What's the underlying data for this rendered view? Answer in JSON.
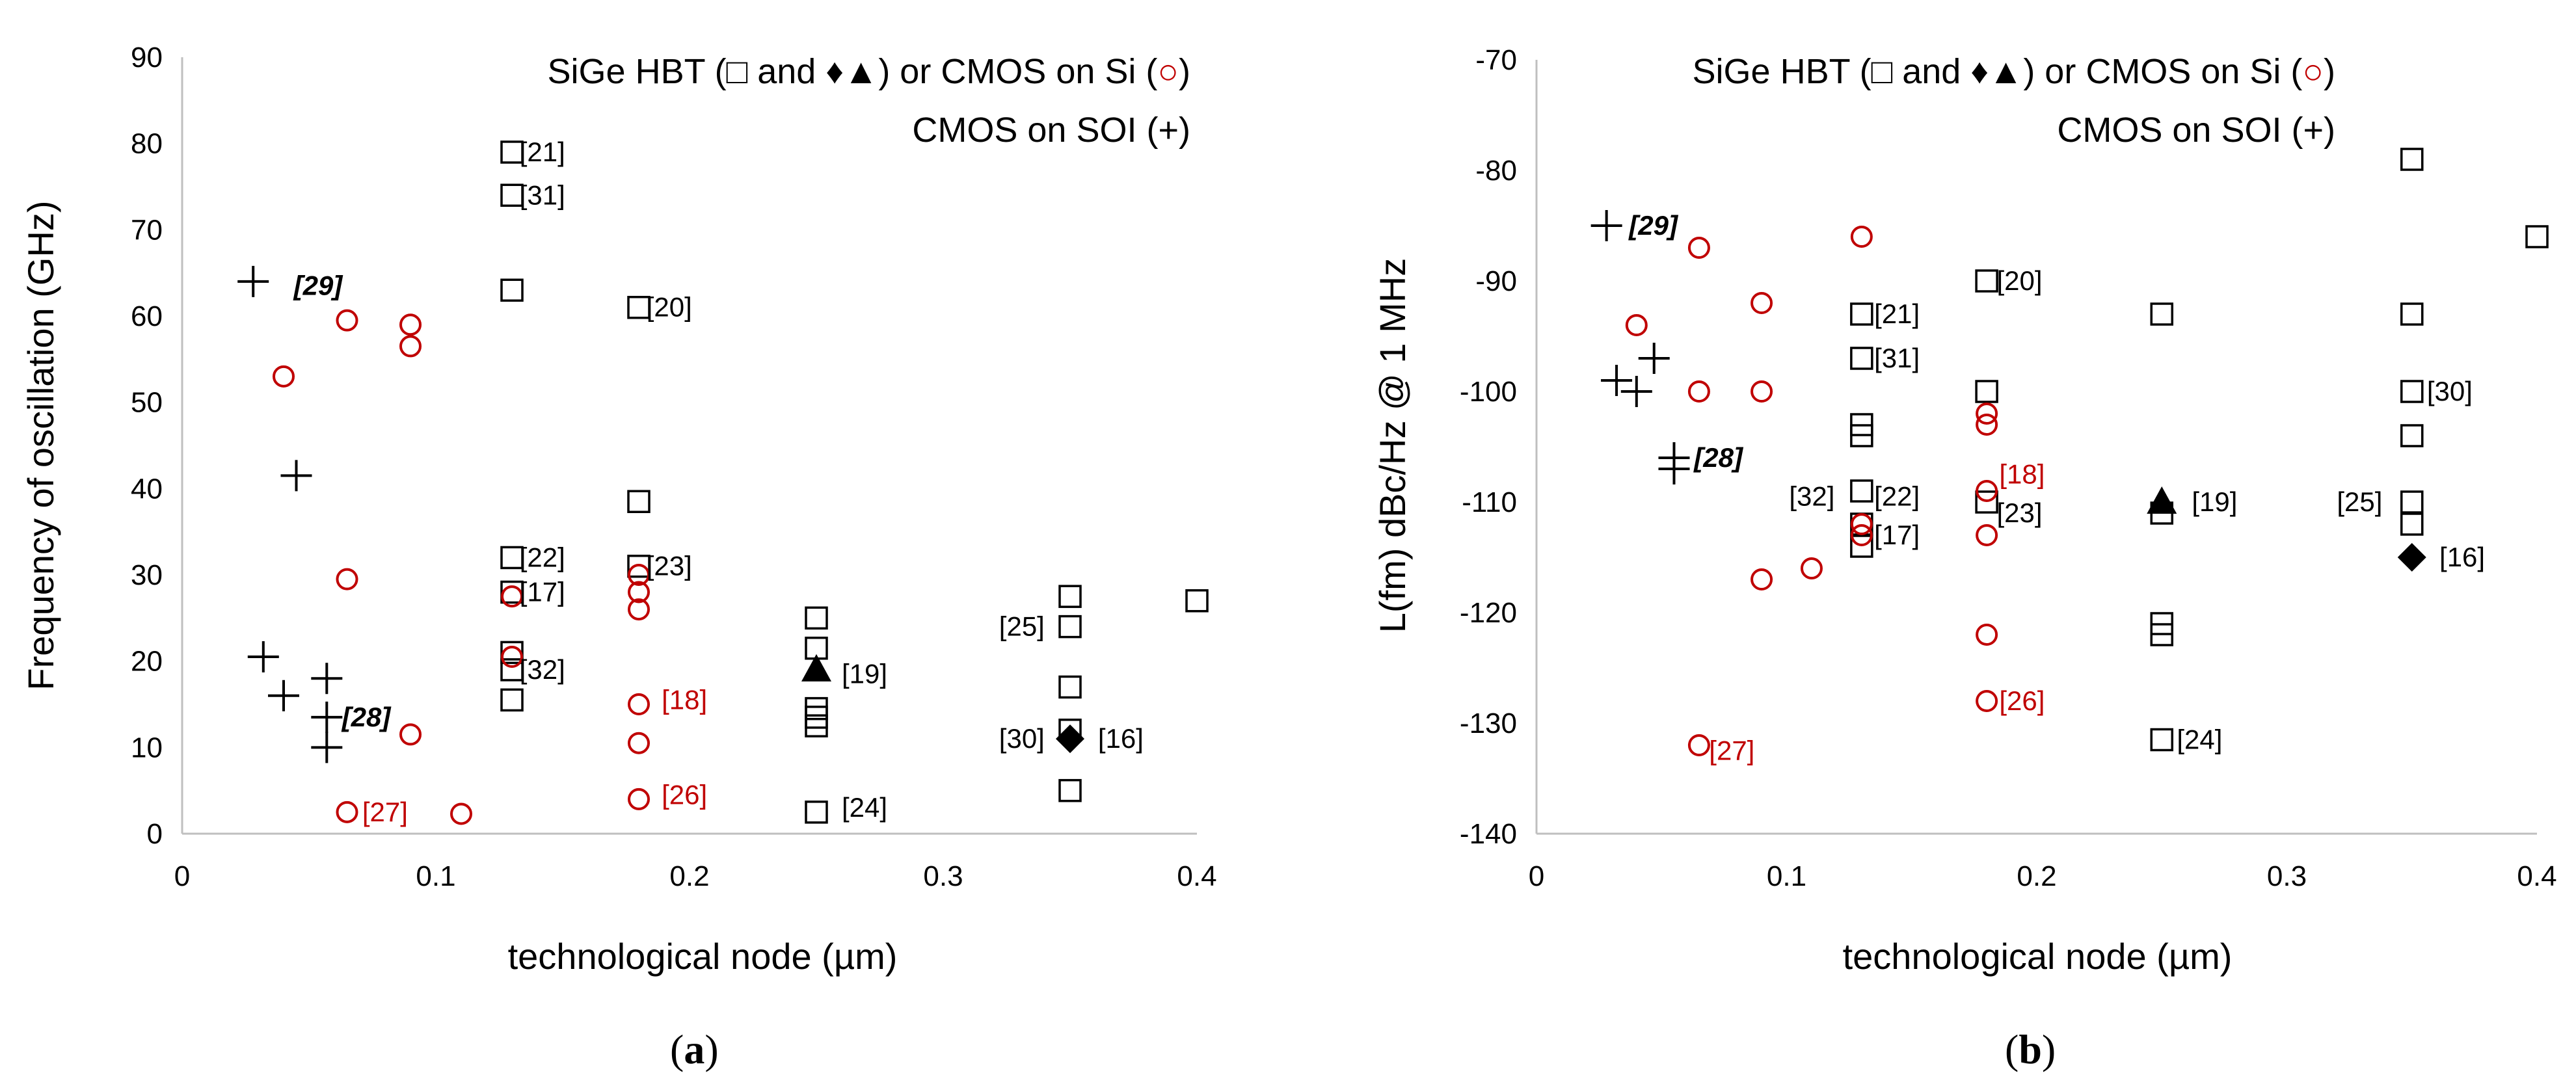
{
  "chart_data": [
    {
      "type": "scatter",
      "panel_label": [
        "(",
        "a",
        ")"
      ],
      "xlabel": "technological node (µm)",
      "ylabel": "Frequency of oscillation (GHz)",
      "xlim": [
        0,
        0.4
      ],
      "ylim": [
        0,
        90
      ],
      "xticks": [
        0,
        0.1,
        0.2,
        0.3,
        0.4
      ],
      "xtick_labels": [
        "0",
        "0.1",
        "0.2",
        "0.3",
        "0.4"
      ],
      "yticks": [
        0,
        10,
        20,
        30,
        40,
        50,
        60,
        70,
        80,
        90
      ],
      "ytick_labels": [
        "0",
        "10",
        "20",
        "30",
        "40",
        "50",
        "60",
        "70",
        "80",
        "90"
      ],
      "legend_line1": [
        "SiGe HBT (",
        "□",
        " and ",
        "♦▲",
        ") or CMOS on Si (",
        "○",
        ")"
      ],
      "legend_line2": "CMOS on SOI (+)",
      "series": [
        {
          "name": "SiGe HBT",
          "marker": "square",
          "color": "#000000",
          "points": [
            [
              0.13,
              79
            ],
            [
              0.13,
              74
            ],
            [
              0.13,
              63
            ],
            [
              0.18,
              61
            ],
            [
              0.18,
              38.5
            ],
            [
              0.13,
              32
            ],
            [
              0.13,
              28
            ],
            [
              0.18,
              31
            ],
            [
              0.13,
              21
            ],
            [
              0.13,
              19
            ],
            [
              0.13,
              15.5
            ],
            [
              0.25,
              25
            ],
            [
              0.25,
              21.5
            ],
            [
              0.25,
              14.5
            ],
            [
              0.25,
              13.5
            ],
            [
              0.25,
              12.5
            ],
            [
              0.25,
              2.5
            ],
            [
              0.35,
              27.5
            ],
            [
              0.35,
              24
            ],
            [
              0.35,
              17
            ],
            [
              0.35,
              12
            ],
            [
              0.35,
              5
            ],
            [
              0.4,
              27
            ]
          ]
        },
        {
          "name": "SiGe HBT triangle",
          "marker": "triangle",
          "color": "#000000",
          "points": [
            [
              0.25,
              19
            ]
          ]
        },
        {
          "name": "SiGe HBT diamond",
          "marker": "diamond",
          "color": "#000000",
          "points": [
            [
              0.35,
              11
            ]
          ]
        },
        {
          "name": "CMOS on Si",
          "marker": "circle",
          "color": "#c00000",
          "points": [
            [
              0.04,
              53
            ],
            [
              0.065,
              59.5
            ],
            [
              0.09,
              59
            ],
            [
              0.09,
              56.5
            ],
            [
              0.065,
              29.5
            ],
            [
              0.09,
              11.5
            ],
            [
              0.065,
              2.5
            ],
            [
              0.11,
              2.3
            ],
            [
              0.13,
              27.5
            ],
            [
              0.13,
              20.5
            ],
            [
              0.18,
              30
            ],
            [
              0.18,
              28
            ],
            [
              0.18,
              26
            ],
            [
              0.18,
              15
            ],
            [
              0.18,
              10.5
            ],
            [
              0.18,
              4
            ]
          ]
        },
        {
          "name": "CMOS on SOI",
          "marker": "plus",
          "color": "#000000",
          "points": [
            [
              0.028,
              64
            ],
            [
              0.045,
              41.5
            ],
            [
              0.032,
              20.5
            ],
            [
              0.04,
              16
            ],
            [
              0.057,
              18
            ],
            [
              0.057,
              13.5
            ],
            [
              0.057,
              10
            ]
          ]
        }
      ],
      "annotations": [
        {
          "text": "[21]",
          "x": 0.133,
          "y": 79,
          "color": "#000000",
          "style": "normal"
        },
        {
          "text": "[31]",
          "x": 0.133,
          "y": 74,
          "color": "#000000",
          "style": "normal"
        },
        {
          "text": "[20]",
          "x": 0.183,
          "y": 61,
          "color": "#000000",
          "style": "normal"
        },
        {
          "text": "[29]",
          "x": 0.044,
          "y": 63.5,
          "color": "#000000",
          "style": "bolditalic"
        },
        {
          "text": "[22]",
          "x": 0.133,
          "y": 32,
          "color": "#000000",
          "style": "normal"
        },
        {
          "text": "[17]",
          "x": 0.133,
          "y": 28,
          "color": "#000000",
          "style": "normal"
        },
        {
          "text": "[23]",
          "x": 0.183,
          "y": 31,
          "color": "#000000",
          "style": "normal"
        },
        {
          "text": "[32]",
          "x": 0.133,
          "y": 19,
          "color": "#000000",
          "style": "normal"
        },
        {
          "text": "[28]",
          "x": 0.063,
          "y": 13.5,
          "color": "#000000",
          "style": "bolditalic"
        },
        {
          "text": "[19]",
          "x": 0.26,
          "y": 18.5,
          "color": "#000000",
          "style": "normal"
        },
        {
          "text": "[25]",
          "x": 0.322,
          "y": 24,
          "color": "#000000",
          "style": "normal"
        },
        {
          "text": "[30]",
          "x": 0.322,
          "y": 11,
          "color": "#000000",
          "style": "normal"
        },
        {
          "text": "[16]",
          "x": 0.361,
          "y": 11,
          "color": "#000000",
          "style": "normal"
        },
        {
          "text": "[24]",
          "x": 0.26,
          "y": 3,
          "color": "#000000",
          "style": "normal"
        },
        {
          "text": "[18]",
          "x": 0.189,
          "y": 15.5,
          "color": "#c00000",
          "style": "normal"
        },
        {
          "text": "[26]",
          "x": 0.189,
          "y": 4.5,
          "color": "#c00000",
          "style": "normal"
        },
        {
          "text": "[27]",
          "x": 0.071,
          "y": 2.5,
          "color": "#c00000",
          "style": "normal"
        }
      ]
    },
    {
      "type": "scatter",
      "panel_label": [
        "(",
        "b",
        ")"
      ],
      "xlabel": "technological node (µm)",
      "ylabel": "L(fm) dBc/Hz @ 1 MHz",
      "xlim": [
        0,
        0.4
      ],
      "ylim": [
        -140,
        -70
      ],
      "xticks": [
        0,
        0.1,
        0.2,
        0.3,
        0.4
      ],
      "xtick_labels": [
        "0",
        "0.1",
        "0.2",
        "0.3",
        "0.4"
      ],
      "yticks": [
        -140,
        -130,
        -120,
        -110,
        -100,
        -90,
        -80,
        -70
      ],
      "ytick_labels": [
        "-140",
        "-130",
        "-120",
        "-110",
        "-100",
        "-90",
        "-80",
        "-70"
      ],
      "legend_line1": [
        "SiGe HBT (",
        "□",
        " and ",
        "♦▲",
        ") or CMOS on Si (",
        "○",
        ")"
      ],
      "legend_line2": "CMOS on SOI (+)",
      "series": [
        {
          "name": "SiGe HBT",
          "marker": "square",
          "color": "#000000",
          "points": [
            [
              0.35,
              -79
            ],
            [
              0.4,
              -86
            ],
            [
              0.18,
              -90
            ],
            [
              0.13,
              -93
            ],
            [
              0.25,
              -93
            ],
            [
              0.35,
              -93
            ],
            [
              0.13,
              -97
            ],
            [
              0.18,
              -100
            ],
            [
              0.35,
              -100
            ],
            [
              0.13,
              -103
            ],
            [
              0.13,
              -104
            ],
            [
              0.35,
              -104
            ],
            [
              0.13,
              -109
            ],
            [
              0.13,
              -112
            ],
            [
              0.13,
              -114
            ],
            [
              0.18,
              -110
            ],
            [
              0.25,
              -111
            ],
            [
              0.35,
              -110
            ],
            [
              0.35,
              -112
            ],
            [
              0.25,
              -121
            ],
            [
              0.25,
              -122
            ],
            [
              0.25,
              -131.5
            ]
          ]
        },
        {
          "name": "SiGe HBT triangle",
          "marker": "triangle",
          "color": "#000000",
          "points": [
            [
              0.25,
              -110
            ]
          ]
        },
        {
          "name": "SiGe HBT diamond",
          "marker": "diamond",
          "color": "#000000",
          "points": [
            [
              0.35,
              -115
            ]
          ]
        },
        {
          "name": "CMOS on Si",
          "marker": "circle",
          "color": "#c00000",
          "points": [
            [
              0.065,
              -87
            ],
            [
              0.13,
              -86
            ],
            [
              0.09,
              -92
            ],
            [
              0.04,
              -94
            ],
            [
              0.065,
              -100
            ],
            [
              0.09,
              -100
            ],
            [
              0.18,
              -102
            ],
            [
              0.18,
              -103
            ],
            [
              0.18,
              -109
            ],
            [
              0.13,
              -112
            ],
            [
              0.13,
              -113
            ],
            [
              0.18,
              -113
            ],
            [
              0.09,
              -117
            ],
            [
              0.11,
              -116
            ],
            [
              0.18,
              -122
            ],
            [
              0.18,
              -128
            ],
            [
              0.065,
              -132
            ]
          ]
        },
        {
          "name": "CMOS on SOI",
          "marker": "plus",
          "color": "#000000",
          "points": [
            [
              0.028,
              -85
            ],
            [
              0.047,
              -97
            ],
            [
              0.032,
              -99
            ],
            [
              0.04,
              -100
            ],
            [
              0.055,
              -106
            ],
            [
              0.055,
              -107
            ]
          ]
        }
      ],
      "annotations": [
        {
          "text": "[29]",
          "x": 0.037,
          "y": -85,
          "color": "#000000",
          "style": "bolditalic"
        },
        {
          "text": "[20]",
          "x": 0.184,
          "y": -90,
          "color": "#000000",
          "style": "normal"
        },
        {
          "text": "[21]",
          "x": 0.135,
          "y": -93,
          "color": "#000000",
          "style": "normal"
        },
        {
          "text": "[31]",
          "x": 0.135,
          "y": -97,
          "color": "#000000",
          "style": "normal"
        },
        {
          "text": "[30]",
          "x": 0.356,
          "y": -100,
          "color": "#000000",
          "style": "normal"
        },
        {
          "text": "[28]",
          "x": 0.063,
          "y": -106,
          "color": "#000000",
          "style": "bolditalic"
        },
        {
          "text": "[18]",
          "x": 0.185,
          "y": -107.5,
          "color": "#c00000",
          "style": "normal"
        },
        {
          "text": "[32]",
          "x": 0.101,
          "y": -109.5,
          "color": "#000000",
          "style": "normal"
        },
        {
          "text": "[22]",
          "x": 0.135,
          "y": -109.5,
          "color": "#000000",
          "style": "normal"
        },
        {
          "text": "[23]",
          "x": 0.184,
          "y": -111,
          "color": "#000000",
          "style": "normal"
        },
        {
          "text": "[17]",
          "x": 0.135,
          "y": -113,
          "color": "#000000",
          "style": "normal"
        },
        {
          "text": "[19]",
          "x": 0.262,
          "y": -110,
          "color": "#000000",
          "style": "normal"
        },
        {
          "text": "[25]",
          "x": 0.32,
          "y": -110,
          "color": "#000000",
          "style": "normal"
        },
        {
          "text": "[16]",
          "x": 0.361,
          "y": -115,
          "color": "#000000",
          "style": "normal"
        },
        {
          "text": "[26]",
          "x": 0.185,
          "y": -128,
          "color": "#c00000",
          "style": "normal"
        },
        {
          "text": "[24]",
          "x": 0.256,
          "y": -131.5,
          "color": "#000000",
          "style": "normal"
        },
        {
          "text": "[27]",
          "x": 0.069,
          "y": -132.5,
          "color": "#c00000",
          "style": "normal"
        }
      ]
    }
  ]
}
